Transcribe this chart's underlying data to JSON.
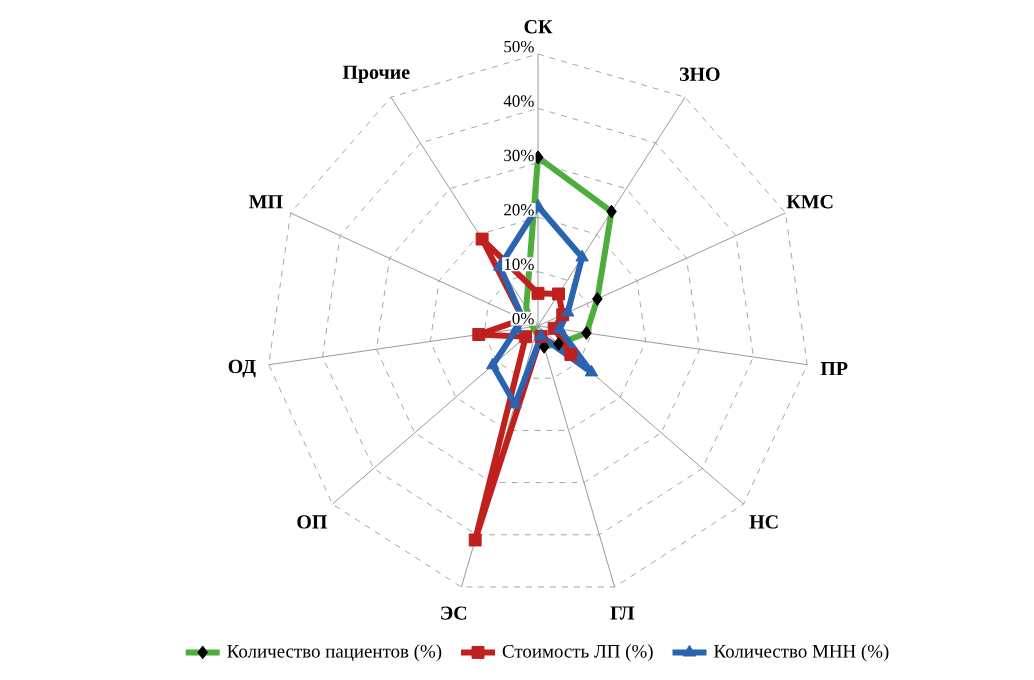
{
  "chart_data": {
    "type": "radar",
    "categories": [
      "СК",
      "ЗНО",
      "КМС",
      "ПР",
      "НС",
      "ГЛ",
      "ЭС",
      "ОП",
      "ОД",
      "МП",
      "Прочие"
    ],
    "series": [
      {
        "name": "Количество пациентов (%)",
        "color": "#4dae3c",
        "marker": "diamond",
        "values": [
          31,
          25,
          12,
          9,
          5,
          4,
          null,
          null,
          1,
          null,
          4
        ]
      },
      {
        "name": "Стоимость ЛП (%)",
        "color": "#c0201e",
        "marker": "square",
        "values": [
          6,
          7,
          5,
          3,
          8,
          2,
          41,
          3,
          11,
          3,
          19
        ]
      },
      {
        "name": "Количество МНН (%)",
        "color": "#2a63b0",
        "marker": "triangle",
        "values": [
          22,
          15,
          6,
          4,
          13,
          2,
          15,
          11,
          4,
          3,
          13
        ]
      }
    ],
    "ylim": [
      0,
      50
    ],
    "yticks": [
      {
        "value": 0,
        "label": "0%"
      },
      {
        "value": 10,
        "label": "10%"
      },
      {
        "value": 20,
        "label": "20%"
      },
      {
        "value": 30,
        "label": "30%"
      },
      {
        "value": 40,
        "label": "40%"
      },
      {
        "value": 50,
        "label": "50%"
      }
    ],
    "grid": true,
    "legend": "bottom"
  }
}
